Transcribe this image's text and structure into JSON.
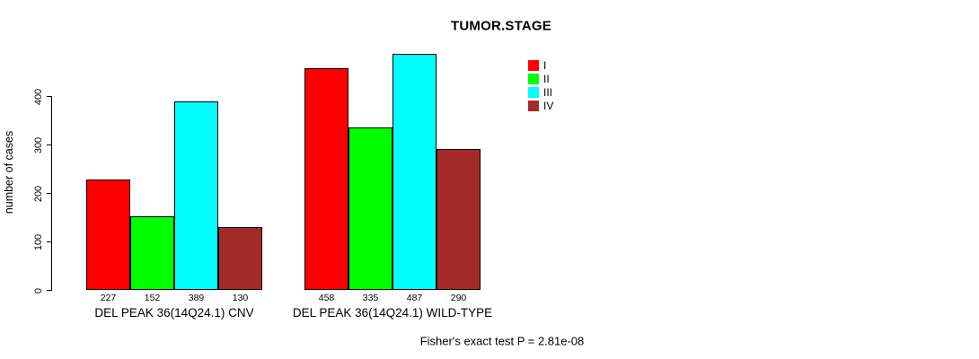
{
  "chart_data": {
    "type": "bar",
    "title": "TUMOR.STAGE",
    "ylabel": "number of cases",
    "xlabel": "",
    "ylim": [
      0,
      400
    ],
    "yticks": [
      0,
      100,
      200,
      300,
      400
    ],
    "grid": false,
    "legend_position": "right-top",
    "bar_value_labels_shown": true,
    "categories": [
      "DEL PEAK 36(14Q24.1) CNV",
      "DEL PEAK 36(14Q24.1) WILD-TYPE"
    ],
    "series": [
      {
        "name": "I",
        "color": "#FF0000",
        "values": [
          227,
          458
        ]
      },
      {
        "name": "II",
        "color": "#00FF00",
        "values": [
          152,
          335
        ]
      },
      {
        "name": "III",
        "color": "#00FFFF",
        "values": [
          389,
          487
        ]
      },
      {
        "name": "IV",
        "color": "#A52A2A",
        "values": [
          130,
          290
        ]
      }
    ],
    "annotation": "Fisher's exact test P = 2.81e-08",
    "colors": {
      "axis": "#000000",
      "bar_border": "#000000",
      "background": "#FFFFFF",
      "text": "#000000"
    }
  }
}
